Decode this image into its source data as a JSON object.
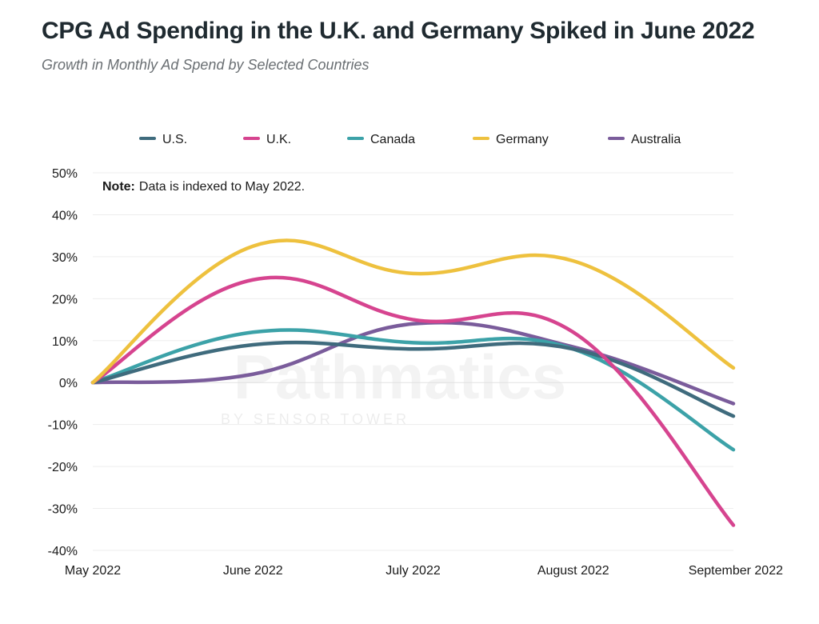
{
  "header": {
    "title": "CPG Ad Spending in the U.K. and Germany Spiked in June 2022",
    "subtitle": "Growth in Monthly Ad Spend by Selected Countries"
  },
  "note": {
    "label": "Note:",
    "text": "Data is indexed to May 2022."
  },
  "watermark": {
    "brand": "Pathmatics",
    "tagline": "BY SENSOR TOWER"
  },
  "chart_data": {
    "type": "line",
    "title": "CPG Ad Spending in the U.K. and Germany Spiked in June 2022",
    "subtitle": "Growth in Monthly Ad Spend by Selected Countries",
    "categories": [
      "May 2022",
      "June 2022",
      "July 2022",
      "August 2022",
      "September 2022"
    ],
    "ylim": [
      -40,
      50
    ],
    "yticks": [
      -40,
      -30,
      -20,
      -10,
      0,
      10,
      20,
      30,
      40,
      50
    ],
    "ytick_labels": [
      "-40%",
      "-30%",
      "-20%",
      "-10%",
      "0%",
      "10%",
      "20%",
      "30%",
      "40%",
      "50%"
    ],
    "grid": true,
    "legend_position": "top",
    "unit": "%",
    "series": [
      {
        "name": "U.S.",
        "color": "#3f6b7d",
        "values": [
          0,
          9,
          8,
          8,
          -8
        ]
      },
      {
        "name": "U.K.",
        "color": "#d6448f",
        "values": [
          0,
          24.5,
          15,
          12,
          -34
        ]
      },
      {
        "name": "Canada",
        "color": "#3ca2a8",
        "values": [
          0,
          12,
          9.5,
          8,
          -16
        ]
      },
      {
        "name": "Germany",
        "color": "#eec13e",
        "values": [
          0,
          32.5,
          26,
          29,
          3.5
        ]
      },
      {
        "name": "Australia",
        "color": "#7a5c9b",
        "values": [
          0,
          2,
          14,
          8.5,
          -5
        ]
      }
    ]
  }
}
